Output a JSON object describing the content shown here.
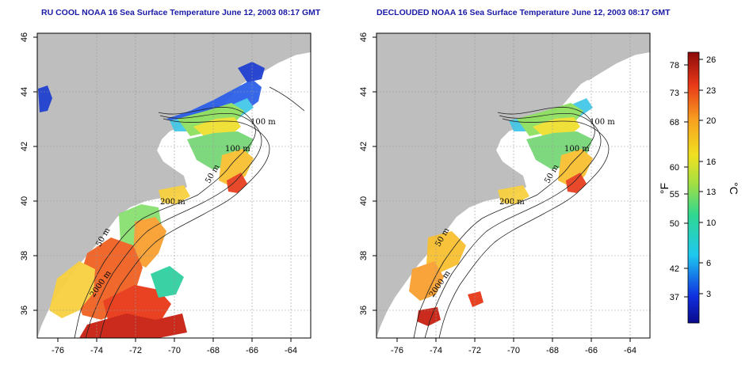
{
  "titles": {
    "left": "RU COOL NOAA 16 Sea Surface Temperature June 12, 2003 08:17 GMT",
    "right": "DECLOUDED NOAA 16 Sea Surface Temperature June 12, 2003 08:17 GMT"
  },
  "axes": {
    "lon_ticks": [
      "-76",
      "-74",
      "-72",
      "-70",
      "-68",
      "-66",
      "-64"
    ],
    "lat_ticks": [
      "46",
      "44",
      "42",
      "40",
      "38",
      "36"
    ]
  },
  "contour_labels": {
    "left": [
      "100 m",
      "100 m",
      "50 m",
      "200 m",
      "50 m",
      "2000 m"
    ],
    "right": [
      "100 m",
      "100 m",
      "50 m",
      "200 m",
      "50 m",
      "2000 m"
    ]
  },
  "colorbar": {
    "fahrenheit_ticks": [
      "78",
      "73",
      "68",
      "60",
      "55",
      "50",
      "42",
      "37"
    ],
    "celsius_ticks": [
      "26",
      "23",
      "20",
      "16",
      "13",
      "10",
      "6",
      "3"
    ],
    "fahrenheit_label": "°F",
    "celsius_label": "°C"
  },
  "colors": {
    "land": "#bebebe",
    "ocean": "#ffffff",
    "title": "#1a1aa6"
  }
}
